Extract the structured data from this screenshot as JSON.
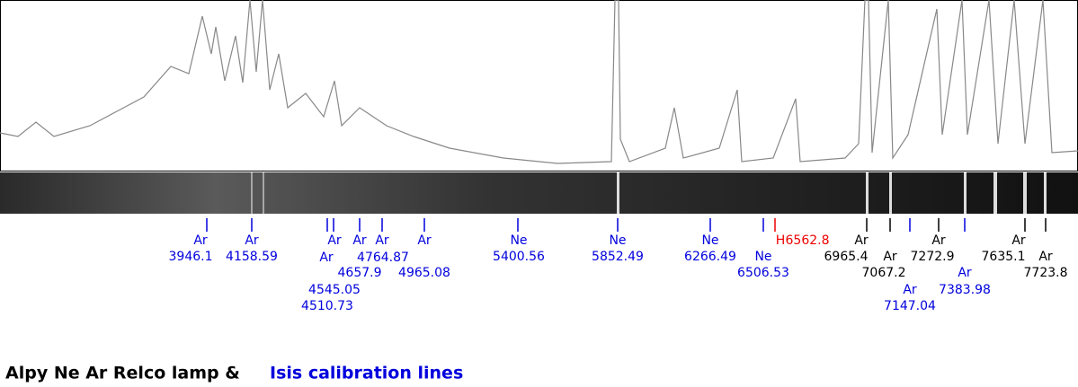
{
  "lines": [
    {
      "element": "Ar",
      "wavelength": "3946.1",
      "color": "#0000dd"
    },
    {
      "element": "Ar",
      "wavelength": "4158.59",
      "color": "#0000dd"
    },
    {
      "element": "Ar",
      "wavelength": "4510.73",
      "color": "#0000dd"
    },
    {
      "element": "Ar",
      "wavelength": "4545.05",
      "color": "#0000dd"
    },
    {
      "element": "Ar",
      "wavelength": "4657.9",
      "color": "#0000dd"
    },
    {
      "element": "Ar",
      "wavelength": "4764.87",
      "color": "#0000dd"
    },
    {
      "element": "Ar",
      "wavelength": "4965.08",
      "color": "#0000dd"
    },
    {
      "element": "Ne",
      "wavelength": "5400.56",
      "color": "#0000dd"
    },
    {
      "element": "Ne",
      "wavelength": "5852.49",
      "color": "#0000dd"
    },
    {
      "element": "Ne",
      "wavelength": "6266.49",
      "color": "#0000dd"
    },
    {
      "element": "Ne",
      "wavelength": "6506.53",
      "color": "#0000dd"
    },
    {
      "element": "H",
      "wavelength": "6562.8",
      "color": "#ee0000"
    },
    {
      "element": "Ar",
      "wavelength": "6965.4",
      "color": "#000000"
    },
    {
      "element": "Ar",
      "wavelength": "7067.2",
      "color": "#000000"
    },
    {
      "element": "Ar",
      "wavelength": "7147.04",
      "color": "#0000dd"
    },
    {
      "element": "Ar",
      "wavelength": "7272.9",
      "color": "#000000"
    },
    {
      "element": "Ar",
      "wavelength": "7383.98",
      "color": "#0000dd"
    },
    {
      "element": "Ar",
      "wavelength": "7635.1",
      "color": "#000000"
    },
    {
      "element": "Ar",
      "wavelength": "7723.8",
      "color": "#000000"
    }
  ],
  "caption": {
    "lamp": "Alpy Ne Ar Relco lamp &",
    "lines": "Isis calibration lines"
  }
}
